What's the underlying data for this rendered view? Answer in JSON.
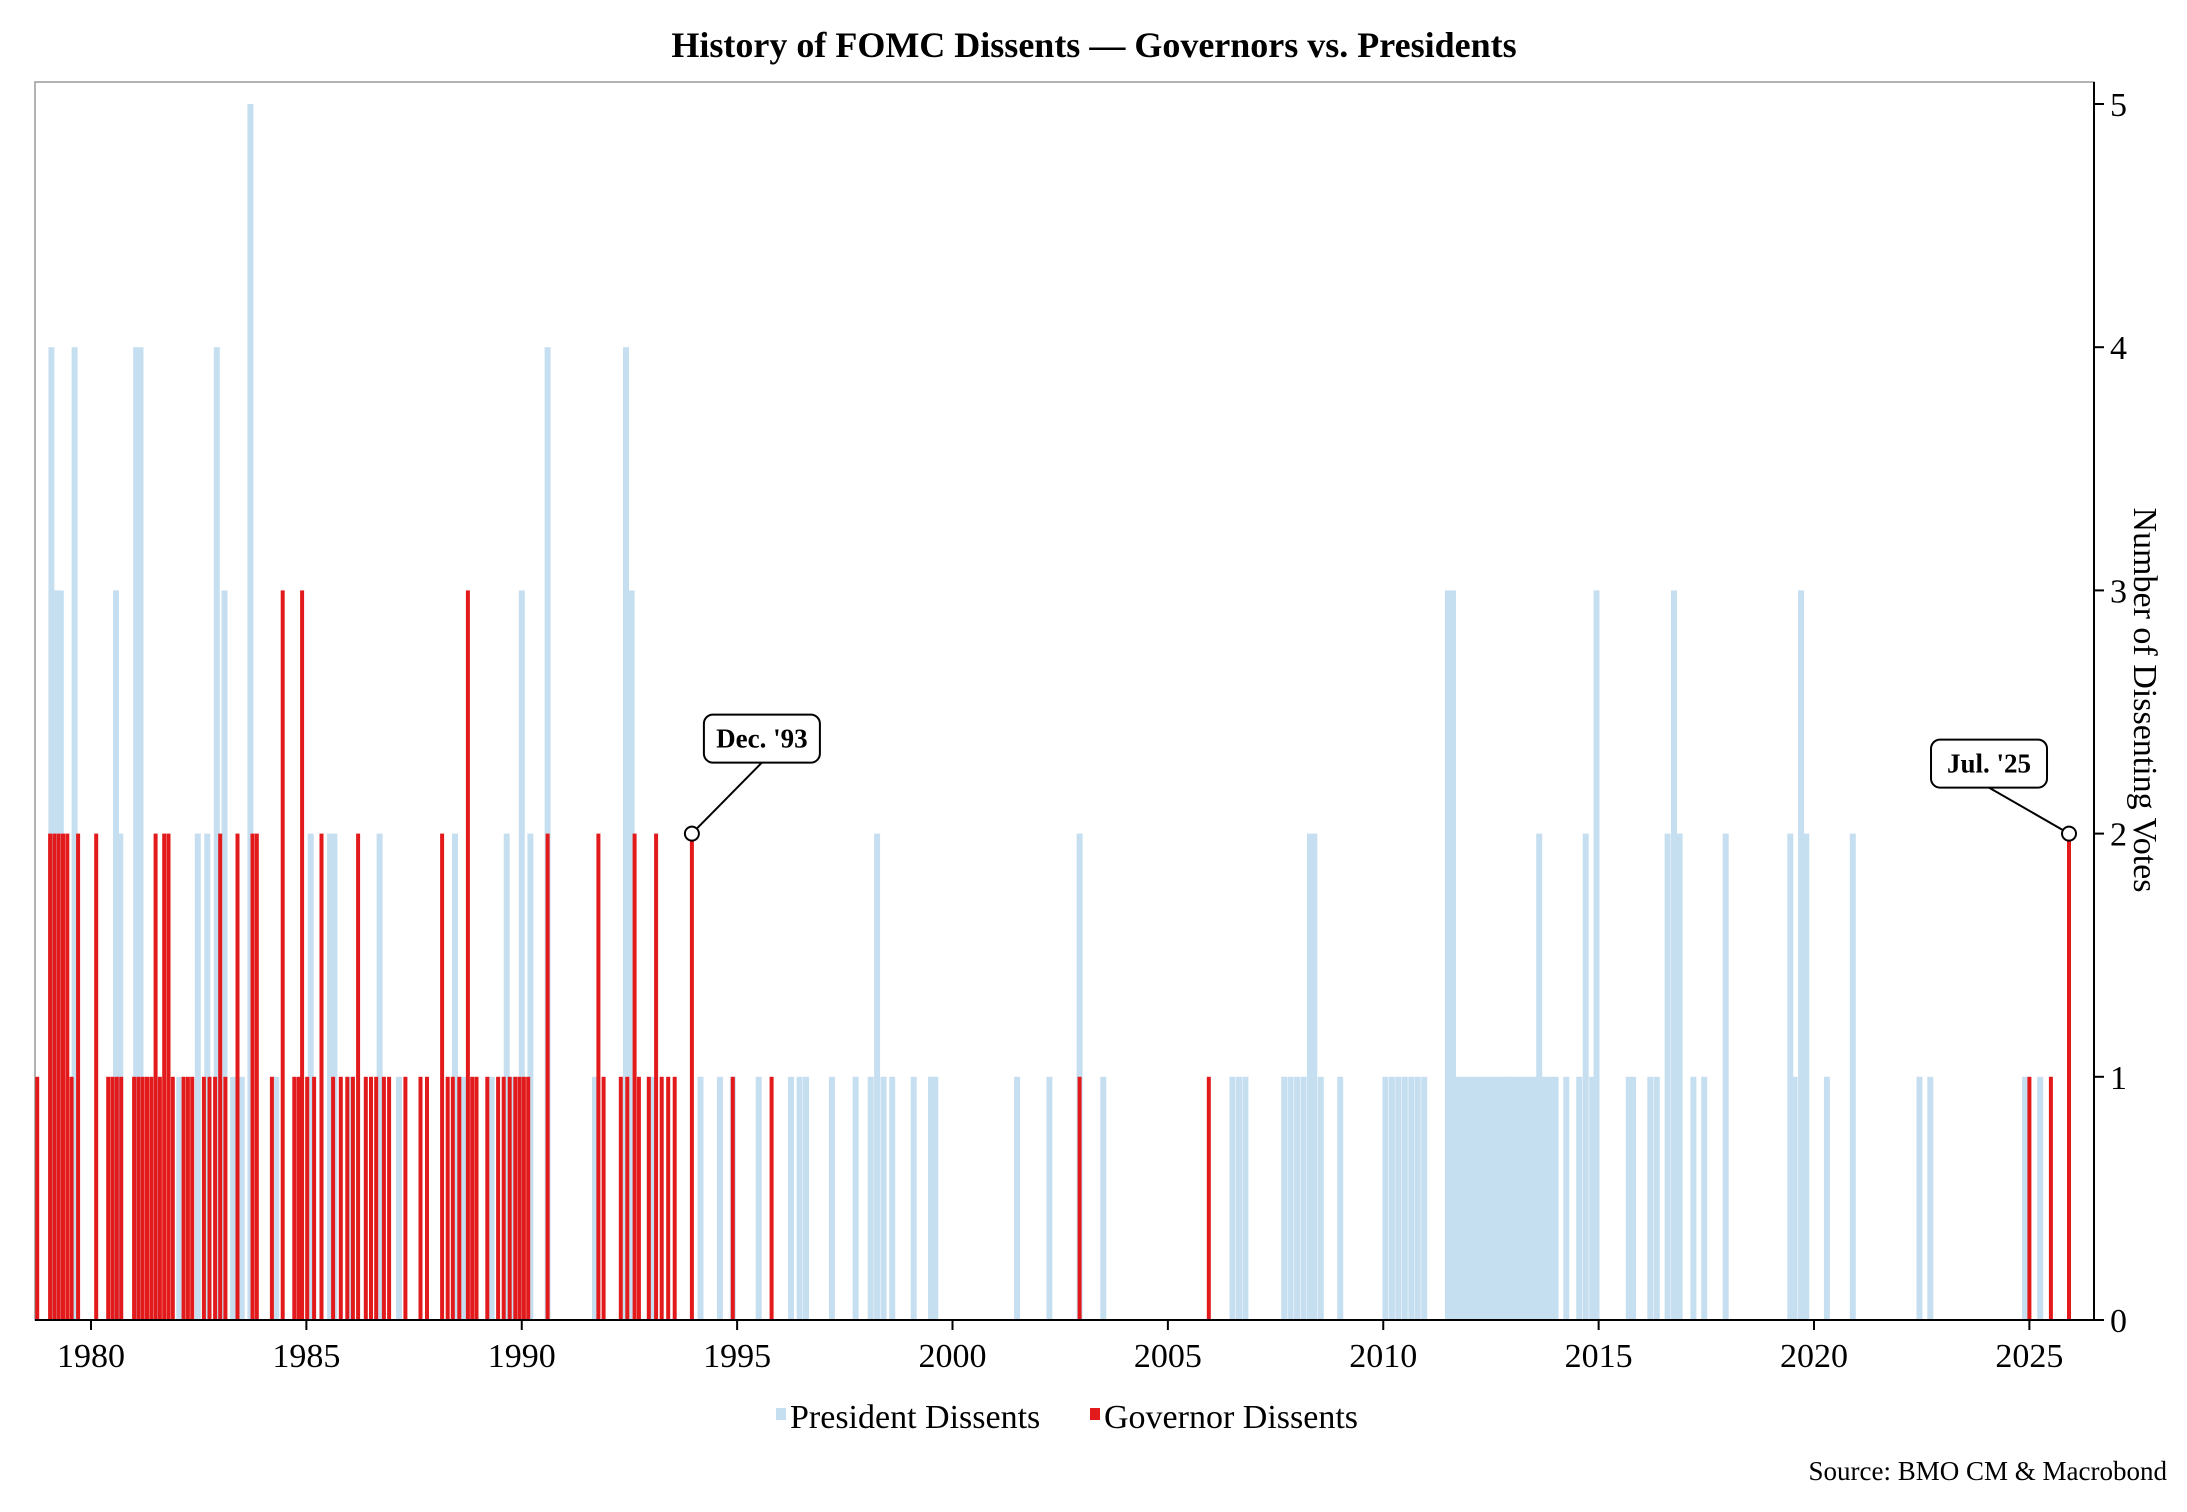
{
  "chart_data": {
    "type": "bar",
    "title": "History of FOMC Dissents — Governors vs. Presidents",
    "ylabel": "Number of Dissenting Votes",
    "xlabel": "",
    "xlim": [
      1978.7,
      2026.5
    ],
    "ylim": [
      0,
      5
    ],
    "x_ticks": [
      1980,
      1985,
      1990,
      1995,
      2000,
      2005,
      2010,
      2015,
      2020,
      2025
    ],
    "y_ticks": [
      0,
      1,
      2,
      3,
      4,
      5
    ],
    "grid": false,
    "legend_position": "bottom-center",
    "colors": {
      "president": "#c6dff0",
      "governor": "#e31a1c"
    },
    "series": [
      {
        "name": "President Dissents",
        "points": [
          [
            1979.08,
            4
          ],
          [
            1979.2,
            3
          ],
          [
            1979.3,
            3
          ],
          [
            1979.62,
            4
          ],
          [
            1980.58,
            3
          ],
          [
            1980.68,
            2
          ],
          [
            1981.05,
            4
          ],
          [
            1981.15,
            4
          ],
          [
            1981.55,
            1
          ],
          [
            1982.05,
            1
          ],
          [
            1982.48,
            2
          ],
          [
            1982.7,
            2
          ],
          [
            1982.92,
            4
          ],
          [
            1983.1,
            3
          ],
          [
            1983.3,
            1
          ],
          [
            1983.5,
            1
          ],
          [
            1983.7,
            5
          ],
          [
            1984.3,
            1
          ],
          [
            1985.1,
            2
          ],
          [
            1985.55,
            2
          ],
          [
            1985.65,
            2
          ],
          [
            1986.0,
            1
          ],
          [
            1986.7,
            2
          ],
          [
            1987.15,
            1
          ],
          [
            1988.45,
            2
          ],
          [
            1988.65,
            1
          ],
          [
            1989.3,
            1
          ],
          [
            1989.65,
            2
          ],
          [
            1989.8,
            1
          ],
          [
            1990.0,
            3
          ],
          [
            1990.2,
            2
          ],
          [
            1990.6,
            4
          ],
          [
            1991.7,
            1
          ],
          [
            1992.42,
            4
          ],
          [
            1992.55,
            3
          ],
          [
            1993.05,
            1
          ],
          [
            1994.15,
            1
          ],
          [
            1994.6,
            1
          ],
          [
            1994.9,
            1
          ],
          [
            1995.5,
            1
          ],
          [
            1996.25,
            1
          ],
          [
            1996.45,
            1
          ],
          [
            1996.6,
            1
          ],
          [
            1997.2,
            1
          ],
          [
            1997.75,
            1
          ],
          [
            1998.1,
            1
          ],
          [
            1998.25,
            2
          ],
          [
            1998.4,
            1
          ],
          [
            1998.6,
            1
          ],
          [
            1999.1,
            1
          ],
          [
            1999.5,
            1
          ],
          [
            1999.6,
            1
          ],
          [
            2001.5,
            1
          ],
          [
            2002.25,
            1
          ],
          [
            2002.95,
            2
          ],
          [
            2003.5,
            1
          ],
          [
            2006.5,
            1
          ],
          [
            2006.65,
            1
          ],
          [
            2006.8,
            1
          ],
          [
            2007.7,
            1
          ],
          [
            2007.85,
            1
          ],
          [
            2008.0,
            1
          ],
          [
            2008.15,
            1
          ],
          [
            2008.3,
            2
          ],
          [
            2008.4,
            2
          ],
          [
            2008.55,
            1
          ],
          [
            2009.0,
            1
          ],
          [
            2010.05,
            1
          ],
          [
            2010.2,
            1
          ],
          [
            2010.35,
            1
          ],
          [
            2010.5,
            1
          ],
          [
            2010.65,
            1
          ],
          [
            2010.8,
            1
          ],
          [
            2010.95,
            1
          ],
          [
            2011.5,
            3
          ],
          [
            2011.62,
            3
          ],
          [
            2011.75,
            1
          ],
          [
            2011.88,
            1
          ],
          [
            2012.0,
            1
          ],
          [
            2012.13,
            1
          ],
          [
            2012.25,
            1
          ],
          [
            2012.38,
            1
          ],
          [
            2012.5,
            1
          ],
          [
            2012.63,
            1
          ],
          [
            2012.75,
            1
          ],
          [
            2012.88,
            1
          ],
          [
            2013.0,
            1
          ],
          [
            2013.13,
            1
          ],
          [
            2013.25,
            1
          ],
          [
            2013.38,
            1
          ],
          [
            2013.5,
            1
          ],
          [
            2013.62,
            2
          ],
          [
            2013.75,
            1
          ],
          [
            2013.88,
            1
          ],
          [
            2014.0,
            1
          ],
          [
            2014.25,
            1
          ],
          [
            2014.55,
            1
          ],
          [
            2014.7,
            2
          ],
          [
            2014.85,
            1
          ],
          [
            2014.95,
            3
          ],
          [
            2015.7,
            1
          ],
          [
            2015.8,
            1
          ],
          [
            2016.2,
            1
          ],
          [
            2016.35,
            1
          ],
          [
            2016.6,
            2
          ],
          [
            2016.75,
            3
          ],
          [
            2016.88,
            2
          ],
          [
            2017.2,
            1
          ],
          [
            2017.45,
            1
          ],
          [
            2017.95,
            2
          ],
          [
            2019.45,
            2
          ],
          [
            2019.55,
            1
          ],
          [
            2019.7,
            3
          ],
          [
            2019.82,
            2
          ],
          [
            2020.3,
            1
          ],
          [
            2020.9,
            2
          ],
          [
            2022.45,
            1
          ],
          [
            2022.7,
            1
          ],
          [
            2024.9,
            1
          ],
          [
            2025.25,
            1
          ]
        ]
      },
      {
        "name": "Governor Dissents",
        "points": [
          [
            1978.75,
            1
          ],
          [
            1979.05,
            2
          ],
          [
            1979.15,
            2
          ],
          [
            1979.25,
            2
          ],
          [
            1979.35,
            2
          ],
          [
            1979.45,
            2
          ],
          [
            1979.55,
            1
          ],
          [
            1979.7,
            2
          ],
          [
            1980.12,
            2
          ],
          [
            1980.4,
            1
          ],
          [
            1980.5,
            1
          ],
          [
            1980.6,
            1
          ],
          [
            1980.7,
            1
          ],
          [
            1981.0,
            1
          ],
          [
            1981.1,
            1
          ],
          [
            1981.2,
            1
          ],
          [
            1981.3,
            1
          ],
          [
            1981.4,
            1
          ],
          [
            1981.5,
            2
          ],
          [
            1981.6,
            1
          ],
          [
            1981.7,
            2
          ],
          [
            1981.8,
            2
          ],
          [
            1981.9,
            1
          ],
          [
            1982.15,
            1
          ],
          [
            1982.25,
            1
          ],
          [
            1982.35,
            1
          ],
          [
            1982.62,
            1
          ],
          [
            1982.75,
            1
          ],
          [
            1982.88,
            1
          ],
          [
            1983.0,
            2
          ],
          [
            1983.12,
            1
          ],
          [
            1983.4,
            2
          ],
          [
            1983.75,
            2
          ],
          [
            1983.85,
            2
          ],
          [
            1984.2,
            1
          ],
          [
            1984.45,
            3
          ],
          [
            1984.72,
            1
          ],
          [
            1984.82,
            1
          ],
          [
            1984.9,
            3
          ],
          [
            1985.02,
            1
          ],
          [
            1985.18,
            1
          ],
          [
            1985.35,
            2
          ],
          [
            1985.62,
            1
          ],
          [
            1985.8,
            1
          ],
          [
            1985.95,
            1
          ],
          [
            1986.08,
            1
          ],
          [
            1986.2,
            2
          ],
          [
            1986.38,
            1
          ],
          [
            1986.5,
            1
          ],
          [
            1986.62,
            1
          ],
          [
            1986.8,
            1
          ],
          [
            1986.92,
            1
          ],
          [
            1987.3,
            1
          ],
          [
            1987.65,
            1
          ],
          [
            1987.8,
            1
          ],
          [
            1988.15,
            2
          ],
          [
            1988.28,
            1
          ],
          [
            1988.4,
            1
          ],
          [
            1988.55,
            1
          ],
          [
            1988.75,
            3
          ],
          [
            1988.85,
            1
          ],
          [
            1988.95,
            1
          ],
          [
            1989.2,
            1
          ],
          [
            1989.45,
            1
          ],
          [
            1989.58,
            1
          ],
          [
            1989.72,
            1
          ],
          [
            1989.85,
            1
          ],
          [
            1989.95,
            1
          ],
          [
            1990.05,
            1
          ],
          [
            1990.15,
            1
          ],
          [
            1990.6,
            2
          ],
          [
            1991.78,
            2
          ],
          [
            1991.9,
            1
          ],
          [
            1992.3,
            1
          ],
          [
            1992.45,
            1
          ],
          [
            1992.62,
            2
          ],
          [
            1992.72,
            1
          ],
          [
            1992.95,
            1
          ],
          [
            1993.12,
            2
          ],
          [
            1993.25,
            1
          ],
          [
            1993.4,
            1
          ],
          [
            1993.55,
            1
          ],
          [
            1993.95,
            2
          ],
          [
            1994.9,
            1
          ],
          [
            1995.8,
            1
          ],
          [
            2002.95,
            1
          ],
          [
            2005.95,
            1
          ],
          [
            2025.0,
            1
          ],
          [
            2025.5,
            1
          ],
          [
            2025.92,
            2
          ]
        ]
      }
    ],
    "annotations": [
      {
        "label": "Dec. '93",
        "x": 1993.95,
        "y": 2
      },
      {
        "label": "Jul. '25",
        "x": 2025.92,
        "y": 2
      }
    ],
    "source": "Source: BMO CM & Macrobond"
  }
}
